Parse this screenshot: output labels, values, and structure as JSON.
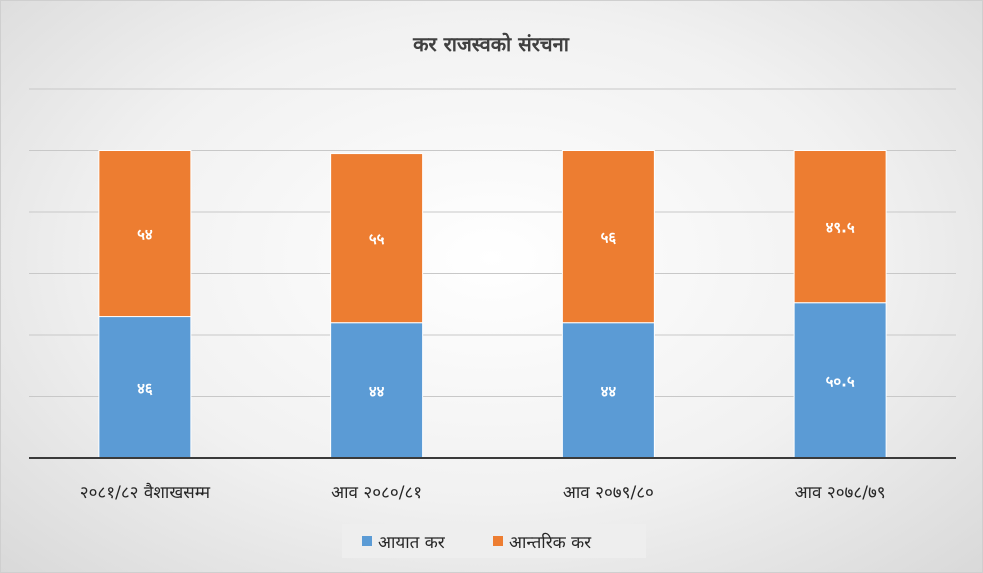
{
  "chart_data": {
    "type": "bar",
    "stacked": true,
    "title": "कर राजस्वको संरचना",
    "categories": [
      "२०८१/८२ वैशाखसम्म",
      "आव २०८०/८१",
      "आव २०७९/८०",
      "आव २०७८/७९"
    ],
    "series": [
      {
        "name": "आयात कर",
        "color": "#5b9bd5",
        "values": [
          46,
          44,
          44,
          50.5
        ],
        "labels": [
          "४६",
          "४४",
          "४४",
          "५०.५"
        ]
      },
      {
        "name": "आन्तरिक कर",
        "color": "#ed7d31",
        "values": [
          54,
          55,
          56,
          49.5
        ],
        "labels": [
          "५४",
          "५५",
          "५६",
          "४९.५"
        ]
      }
    ],
    "ylim": [
      0,
      120
    ],
    "grid": true,
    "legend": "bottom"
  }
}
